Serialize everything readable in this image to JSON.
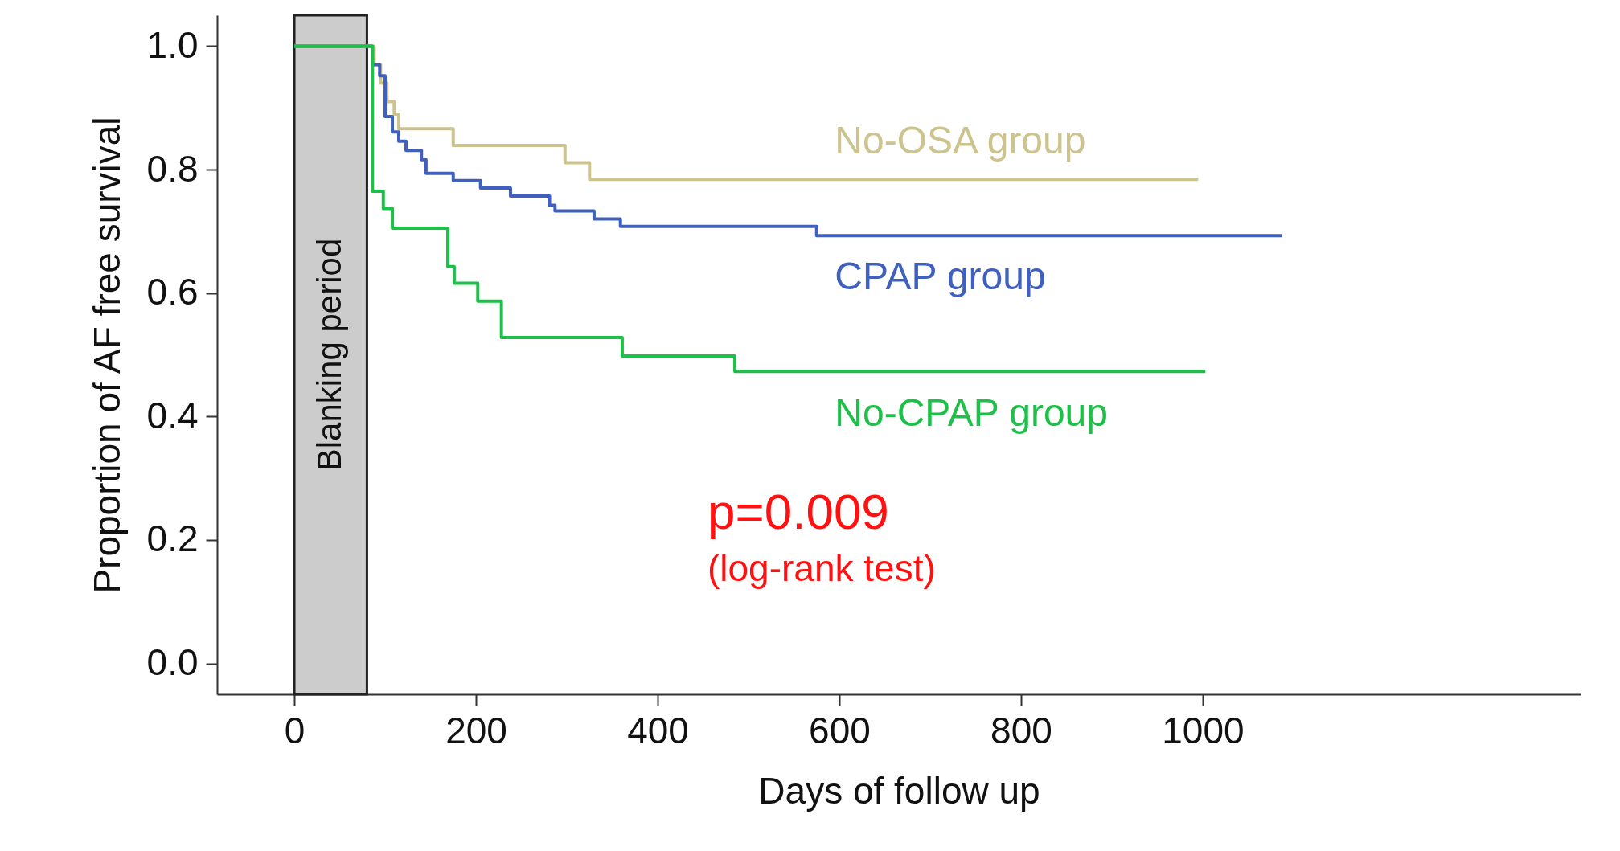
{
  "chart_data": {
    "type": "step",
    "xlabel": "Days of follow up",
    "ylabel": "Proportion of AF free survival",
    "xlim": [
      -85,
      1416
    ],
    "xticks": [
      0,
      200,
      400,
      600,
      800,
      1000
    ],
    "ylim": [
      -0.05,
      1.05
    ],
    "yticks": [
      {
        "value": 0,
        "label": "0.0"
      },
      0.2,
      0.4,
      0.6,
      0.8,
      {
        "value": 1,
        "label": "1.0"
      }
    ],
    "grid": false,
    "line_style": "solid",
    "marker": "none",
    "series": [
      {
        "name": "No-OSA group",
        "color": "#cdc38f",
        "x": [
          0,
          88,
          95,
          102,
          110,
          115,
          175,
          298,
          325,
          995
        ],
        "values": [
          1.0,
          0.97,
          0.94,
          0.91,
          0.89,
          0.866,
          0.839,
          0.811,
          0.784,
          0.784
        ]
      },
      {
        "name": "CPAP group",
        "color": "#4060c0",
        "x": [
          0,
          86,
          94,
          100,
          108,
          115,
          123,
          140,
          145,
          175,
          205,
          238,
          281,
          287,
          330,
          359,
          575,
          1087
        ],
        "values": [
          1.0,
          0.97,
          0.952,
          0.886,
          0.861,
          0.846,
          0.831,
          0.816,
          0.794,
          0.782,
          0.77,
          0.757,
          0.742,
          0.733,
          0.72,
          0.708,
          0.693,
          0.693
        ]
      },
      {
        "name": "No-CPAP group",
        "color": "#1ec04a",
        "x": [
          0,
          86,
          98,
          108,
          169,
          176,
          202,
          228,
          361,
          485,
          1003
        ],
        "values": [
          1.0,
          0.765,
          0.737,
          0.705,
          0.643,
          0.616,
          0.587,
          0.528,
          0.498,
          0.473,
          0.473
        ]
      }
    ],
    "bands": [
      {
        "axis": "x",
        "from": 0,
        "to": 80,
        "label": "Blanking period",
        "color": "#cccccc"
      }
    ],
    "annotations": [
      "p=0.009",
      "(log-rank test)"
    ]
  }
}
